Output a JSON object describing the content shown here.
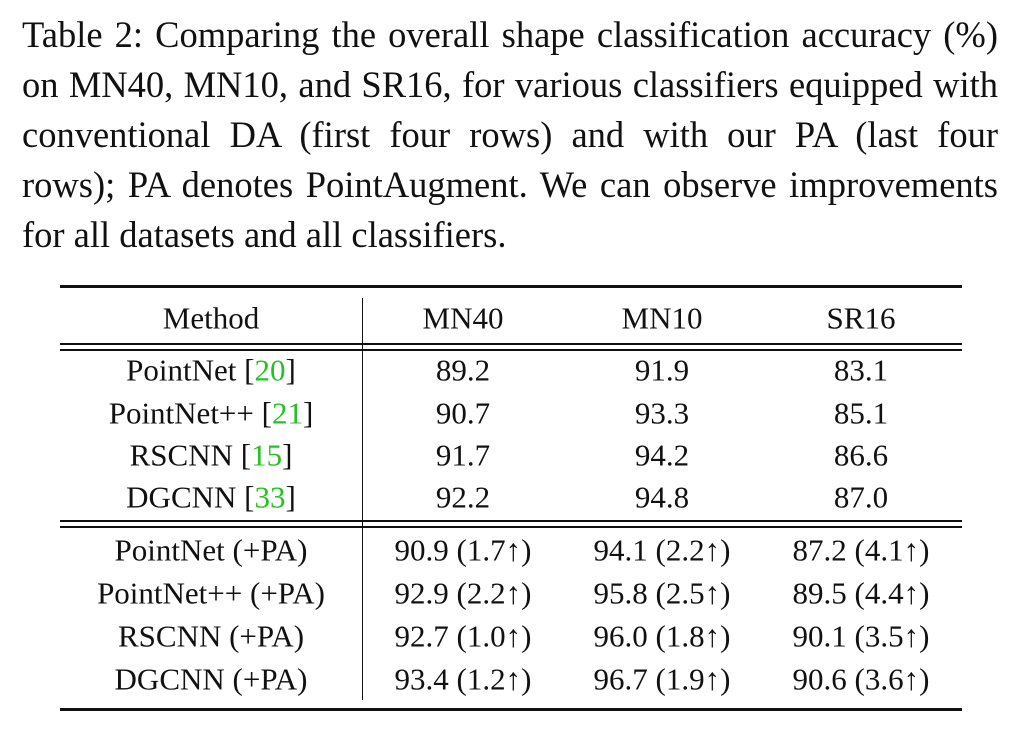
{
  "caption": "Table 2: Comparing the overall shape classification accuracy (%) on MN40, MN10, and SR16, for various classifiers equipped with conventional DA (first four rows) and with our PA (last four rows); PA denotes PointAugment. We can observe improvements for all datasets and all classifiers.",
  "table": {
    "header": [
      "Method",
      "MN40",
      "MN10",
      "SR16"
    ],
    "groups": [
      [
        [
          "PointNet [20]",
          "89.2",
          "91.9",
          "83.1"
        ],
        [
          "PointNet++ [21]",
          "90.7",
          "93.3",
          "85.1"
        ],
        [
          "RSCNN [15]",
          "91.7",
          "94.2",
          "86.6"
        ],
        [
          "DGCNN [33]",
          "92.2",
          "94.8",
          "87.0"
        ]
      ],
      [
        [
          "PointNet (+PA)",
          "90.9 (1.7↑)",
          "94.1 (2.2↑)",
          "87.2 (4.1↑)"
        ],
        [
          "PointNet++ (+PA)",
          "92.9 (2.2↑)",
          "95.8 (2.5↑)",
          "89.5 (4.4↑)"
        ],
        [
          "RSCNN (+PA)",
          "92.7 (1.0↑)",
          "96.0 (1.8↑)",
          "90.1 (3.5↑)"
        ],
        [
          "DGCNN (+PA)",
          "93.4 (1.2↑)",
          "96.7 (1.9↑)",
          "90.6 (3.6↑)"
        ]
      ]
    ]
  }
}
